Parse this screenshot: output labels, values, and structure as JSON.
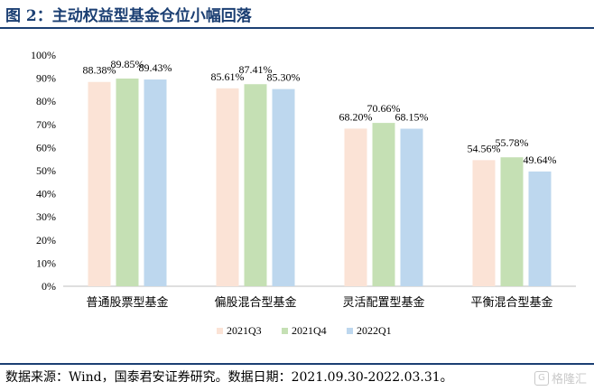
{
  "title": "图 2：主动权益型基金仓位小幅回落",
  "source": "数据来源：Wind，国泰君安证券研究。数据日期：2021.09.30-2022.03.31。",
  "watermark": "格隆汇",
  "watermark_icon": "G",
  "chart_data": {
    "type": "bar",
    "categories": [
      "普通股票型基金",
      "偏股混合型基金",
      "灵活配置型基金",
      "平衡混合型基金"
    ],
    "series": [
      {
        "name": "2021Q3",
        "values": [
          88.38,
          85.61,
          68.2,
          54.56
        ],
        "color": "#fbe3d6"
      },
      {
        "name": "2021Q4",
        "values": [
          89.85,
          87.41,
          70.66,
          55.78
        ],
        "color": "#c5e0b4"
      },
      {
        "name": "2022Q1",
        "values": [
          89.43,
          85.3,
          68.15,
          49.64
        ],
        "color": "#bdd7ee"
      }
    ],
    "ylim": [
      0,
      100
    ],
    "yticks": [
      0,
      10,
      20,
      30,
      40,
      50,
      60,
      70,
      80,
      90,
      100
    ],
    "tick_suffix": "%",
    "value_suffix": "%",
    "legend": "bottom",
    "grid": false
  }
}
